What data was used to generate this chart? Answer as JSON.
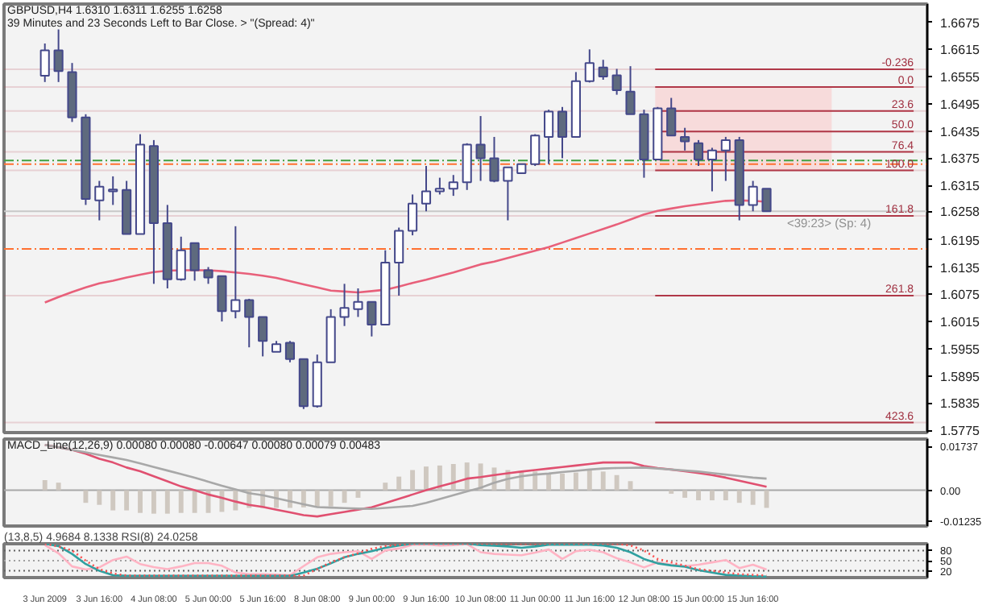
{
  "chart_data": [
    {
      "type": "candlestick",
      "categories": [
        null,
        null,
        null,
        null,
        null,
        null,
        null,
        null,
        null,
        null,
        null,
        null,
        null,
        null,
        null,
        null,
        null,
        null,
        null,
        null,
        null,
        null,
        null,
        null,
        null,
        null,
        null,
        null,
        null,
        null,
        null,
        null,
        null,
        null,
        null,
        null,
        null,
        null,
        null,
        null,
        null,
        null,
        null,
        null,
        null,
        null,
        null,
        null,
        null,
        null,
        null,
        null,
        null,
        null
      ],
      "ohlc": [
        [
          1.6557,
          1.6628,
          1.6543,
          1.6613
        ],
        [
          1.6613,
          1.6659,
          1.6543,
          1.6567
        ],
        [
          1.6565,
          1.6585,
          1.6455,
          1.6465
        ],
        [
          1.6465,
          1.6472,
          1.6272,
          1.6285
        ],
        [
          1.6282,
          1.6325,
          1.6238,
          1.6312
        ],
        [
          1.6302,
          1.6335,
          1.6272,
          1.6306
        ],
        [
          1.6305,
          1.6325,
          1.6208,
          1.6208
        ],
        [
          1.6208,
          1.6428,
          1.6208,
          1.6405
        ],
        [
          1.6402,
          1.6415,
          1.6098,
          1.6232
        ],
        [
          1.6232,
          1.6272,
          1.6088,
          1.6108
        ],
        [
          1.6108,
          1.6202,
          1.6105,
          1.6172
        ],
        [
          1.6188,
          1.6188,
          1.6105,
          1.6128
        ],
        [
          1.6128,
          1.6135,
          1.6098,
          1.6112
        ],
        [
          1.6115,
          1.6115,
          1.6015,
          1.6038
        ],
        [
          1.6038,
          1.6225,
          1.6022,
          1.6062
        ],
        [
          1.6062,
          1.6065,
          1.5958,
          1.6025
        ],
        [
          1.6025,
          1.6025,
          1.5938,
          1.5972
        ],
        [
          1.5948,
          1.5972,
          1.5948,
          1.5965
        ],
        [
          1.5968,
          1.5972,
          1.5925,
          1.5932
        ],
        [
          1.5932,
          1.5932,
          1.5822,
          1.5828
        ],
        [
          1.5828,
          1.5942,
          1.5825,
          1.5925
        ],
        [
          1.5925,
          1.6042,
          1.5925,
          1.6025
        ],
        [
          1.6025,
          1.6098,
          1.6005,
          1.6045
        ],
        [
          1.6042,
          1.6088,
          1.6025,
          1.6058
        ],
        [
          1.6058,
          1.6058,
          1.5982,
          1.6008
        ],
        [
          1.6008,
          1.6172,
          1.6008,
          1.6145
        ],
        [
          1.6145,
          1.6222,
          1.6072,
          1.6215
        ],
        [
          1.6215,
          1.6295,
          1.6205,
          1.6275
        ],
        [
          1.6275,
          1.6358,
          1.6258,
          1.6302
        ],
        [
          1.6302,
          1.6332,
          1.6295,
          1.6308
        ],
        [
          1.6308,
          1.6338,
          1.6292,
          1.6322
        ],
        [
          1.6322,
          1.6408,
          1.6305,
          1.6405
        ],
        [
          1.6405,
          1.6468,
          1.6325,
          1.6375
        ],
        [
          1.6375,
          1.6422,
          1.6322,
          1.6325
        ],
        [
          1.6325,
          1.6355,
          1.6238,
          1.6355
        ],
        [
          1.6342,
          1.6362,
          1.6342,
          1.6362
        ],
        [
          1.6362,
          1.6428,
          1.6358,
          1.6425
        ],
        [
          1.6422,
          1.6482,
          1.6362,
          1.6478
        ],
        [
          1.6478,
          1.6488,
          1.6375,
          1.6422
        ],
        [
          1.6422,
          1.6565,
          1.6422,
          1.6545
        ],
        [
          1.6545,
          1.6615,
          1.6542,
          1.6585
        ],
        [
          1.6575,
          1.6592,
          1.6548,
          1.6555
        ],
        [
          1.6558,
          1.6572,
          1.6515,
          1.6525
        ],
        [
          1.6522,
          1.6578,
          1.6472,
          1.6472
        ],
        [
          1.6472,
          1.6482,
          1.6332,
          1.6372
        ],
        [
          1.6372,
          1.6488,
          1.6372,
          1.6485
        ],
        [
          1.6485,
          1.6508,
          1.6425,
          1.6425
        ],
        [
          1.6422,
          1.6442,
          1.6392,
          1.6412
        ],
        [
          1.6408,
          1.6415,
          1.6358,
          1.6372
        ],
        [
          1.6372,
          1.6398,
          1.6302,
          1.6392
        ],
        [
          1.6392,
          1.6422,
          1.6325,
          1.6415
        ],
        [
          1.6415,
          1.6422,
          1.6238,
          1.6272
        ],
        [
          1.6272,
          1.6325,
          1.6258,
          1.6312
        ],
        [
          1.6308,
          1.6308,
          1.6258,
          1.6258
        ]
      ],
      "colors": [
        "#ffffff",
        "#5e6a7e",
        "#5e6a7e",
        "#5e6a7e",
        "#ffffff",
        "#ffffff",
        "#5e6a7e",
        "#ffffff",
        "#5e6a7e",
        "#5e6a7e",
        "#ffffff",
        "#5e6a7e",
        "#5e6a7e",
        "#5e6a7e",
        "#ffffff",
        "#5e6a7e",
        "#5e6a7e",
        "#ffffff",
        "#5e6a7e",
        "#5e6a7e",
        "#ffffff",
        "#ffffff",
        "#ffffff",
        "#ffffff",
        "#5e6a7e",
        "#ffffff",
        "#ffffff",
        "#ffffff",
        "#ffffff",
        "#ffffff",
        "#ffffff",
        "#ffffff",
        "#5e6a7e",
        "#5e6a7e",
        "#ffffff",
        "#ffffff",
        "#ffffff",
        "#ffffff",
        "#5e6a7e",
        "#ffffff",
        "#ffffff",
        "#5e6a7e",
        "#5e6a7e",
        "#5e6a7e",
        "#5e6a7e",
        "#ffffff",
        "#5e6a7e",
        "#5e6a7e",
        "#5e6a7e",
        "#ffffff",
        "#ffffff",
        "#5e6a7e",
        "#ffffff",
        "#5e6a7e"
      ],
      "series": [
        {
          "type": "line",
          "color": "#e8607a",
          "values": [
            1.6057,
            1.6069,
            1.608,
            1.609,
            1.6099,
            1.6105,
            1.6112,
            1.6118,
            1.6124,
            1.6127,
            1.6128,
            1.6128,
            1.6128,
            1.6126,
            1.6123,
            1.612,
            1.6116,
            1.6111,
            1.6104,
            1.6097,
            1.609,
            1.6083,
            1.6081,
            1.6079,
            1.6082,
            1.6085,
            1.6092,
            1.61,
            1.6107,
            1.6115,
            1.6123,
            1.6132,
            1.6141,
            1.6147,
            1.6155,
            1.6163,
            1.6171,
            1.6179,
            1.6189,
            1.6199,
            1.6209,
            1.6219,
            1.6229,
            1.624,
            1.6251,
            1.6259,
            1.6264,
            1.6269,
            1.6273,
            1.6277,
            1.6281,
            1.6282,
            1.6281,
            1.6279
          ]
        }
      ],
      "ylim": [
        1.577,
        1.6715
      ],
      "yticks": [
        1.6675,
        1.6615,
        1.6555,
        1.6495,
        1.6435,
        1.6375,
        1.6315,
        1.6258,
        1.6195,
        1.6135,
        1.6075,
        1.6015,
        1.5955,
        1.5895,
        1.5835,
        1.5775
      ],
      "bands": [
        {
          "axis": "y",
          "from": 1.6348,
          "to": 1.6532,
          "color": "#f8d4d4"
        }
      ],
      "ref_lines": [
        {
          "axis": "y",
          "value": 1.637,
          "color": "#40a040",
          "line_style": "dashed"
        },
        {
          "axis": "y",
          "value": 1.6362,
          "color": "#ff7030",
          "line_style": "dashed"
        },
        {
          "axis": "y",
          "value": 1.6175,
          "color": "#ff7030",
          "line_style": "dashed"
        },
        {
          "axis": "y",
          "value": 1.6258,
          "color": "#c8c8c8"
        },
        {
          "axis": "y",
          "value": 1.6571,
          "color": "#b03848"
        },
        {
          "axis": "y",
          "value": 1.6532,
          "color": "#b03848"
        },
        {
          "axis": "y",
          "value": 1.6479,
          "color": "#b03848"
        },
        {
          "axis": "y",
          "value": 1.6434,
          "color": "#b03848"
        },
        {
          "axis": "y",
          "value": 1.6389,
          "color": "#b03848"
        },
        {
          "axis": "y",
          "value": 1.6348,
          "color": "#b03848"
        },
        {
          "axis": "y",
          "value": 1.6248,
          "color": "#b03848"
        },
        {
          "axis": "y",
          "value": 1.6072,
          "color": "#b03848"
        },
        {
          "axis": "y",
          "value": 1.5792,
          "color": "#b03848"
        }
      ],
      "annotations": [
        "GBPUSD,H4  1.6310 1.6311 1.6255 1.6258",
        "39 Minutes and 23 Seconds Left to Bar Close. > \"(Spread: 4)\"",
        "<39:23> (Sp: 4)",
        {
          "text": "-0.236",
          "y": 1.6571
        },
        {
          "text": "0.0",
          "y": 1.6532
        },
        {
          "text": "23.6",
          "y": 1.6479
        },
        {
          "text": "50.0",
          "y": 1.6434
        },
        {
          "text": "76.4",
          "y": 1.6389
        },
        {
          "text": "100.0",
          "y": 1.6348
        },
        {
          "text": "161.8",
          "y": 1.6248
        },
        {
          "text": "261.8",
          "y": 1.6072
        },
        {
          "text": "423.6",
          "y": 1.5792
        }
      ],
      "tick_labels": "y"
    },
    {
      "type": "bar",
      "categories": [
        null,
        null,
        null,
        null,
        null,
        null,
        null,
        null,
        null,
        null,
        null,
        null,
        null,
        null,
        null,
        null,
        null,
        null,
        null,
        null,
        null,
        null,
        null,
        null,
        null,
        null,
        null,
        null,
        null,
        null,
        null,
        null,
        null,
        null,
        null,
        null,
        null,
        null,
        null,
        null,
        null,
        null,
        null,
        null,
        null,
        null,
        null,
        null,
        null,
        null,
        null,
        null,
        null,
        null
      ],
      "series": [
        {
          "type": "bar",
          "color": "#cfc8c0",
          "values": [
            0.004,
            0.003,
            null,
            -0.005,
            -0.0058,
            -0.008,
            -0.008,
            -0.009,
            -0.0093,
            -0.0093,
            -0.009,
            -0.009,
            -0.009,
            -0.0086,
            -0.008,
            -0.007,
            -0.007,
            -0.007,
            -0.007,
            -0.0068,
            -0.0068,
            -0.0064,
            -0.005,
            -0.003,
            null,
            0.003,
            0.0054,
            0.008,
            0.0094,
            0.0098,
            0.0104,
            0.011,
            0.0106,
            0.009,
            0.008,
            0.0074,
            0.0074,
            0.0066,
            0.0066,
            0.007,
            0.008,
            0.0074,
            0.006,
            0.0036,
            null,
            null,
            -0.0014,
            -0.003,
            -0.004,
            -0.004,
            -0.004,
            -0.005,
            -0.0058,
            -0.007
          ]
        },
        {
          "type": "line",
          "color": "#e05070",
          "values": [
            0.018,
            0.017,
            0.016,
            0.0145,
            0.0125,
            0.011,
            0.009,
            0.0075,
            0.0055,
            0.0035,
            0.0015,
            0.0,
            -0.0017,
            -0.003,
            -0.0045,
            -0.0058,
            -0.0066,
            -0.0077,
            -0.0088,
            -0.0099,
            -0.0104,
            -0.0095,
            -0.0086,
            -0.0077,
            -0.0068,
            -0.0051,
            -0.0034,
            -0.0017,
            0.0,
            0.0015,
            0.003,
            0.0046,
            0.0052,
            0.006,
            0.0067,
            0.0074,
            0.008,
            0.0086,
            0.0092,
            0.0098,
            0.0104,
            0.011,
            0.011,
            0.011,
            0.0096,
            0.0088,
            0.0082,
            0.0075,
            0.0068,
            0.006,
            0.005,
            0.0038,
            0.0026,
            0.0014
          ]
        },
        {
          "type": "line",
          "color": "#a8a8a8",
          "values": [
            0.018,
            0.017,
            0.016,
            0.015,
            0.014,
            0.013,
            0.012,
            0.0106,
            0.0092,
            0.0078,
            0.0064,
            0.005,
            0.0034,
            0.0018,
            0.0003,
            -0.0012,
            -0.002,
            -0.0032,
            -0.0044,
            -0.0056,
            -0.0067,
            -0.0069,
            -0.0071,
            -0.0073,
            -0.0074,
            -0.007,
            -0.0066,
            -0.0062,
            -0.005,
            -0.0035,
            -0.002,
            -0.0005,
            0.001,
            0.003,
            0.0045,
            0.0055,
            0.0062,
            0.0066,
            0.0072,
            0.0077,
            0.0082,
            0.0086,
            0.0088,
            0.0089,
            0.009,
            0.0086,
            0.0082,
            0.0078,
            0.0074,
            0.0068,
            0.0062,
            0.0056,
            0.005,
            0.0046
          ]
        }
      ],
      "ylim": [
        -0.0142,
        0.0203
      ],
      "yticks": [
        0.01737,
        {
          "value": 0,
          "label": "0.00"
        },
        -0.01235
      ],
      "ref_lines": [
        {
          "axis": "y",
          "value": 0,
          "color": "#a8a8a8"
        }
      ],
      "annotations": [
        "MACD_Line(12,26,9) 0.00080 0.00080 -0.00647 0.00080 0.00079 0.00483"
      ],
      "tick_labels": "y"
    },
    {
      "type": "line",
      "categories": [
        "3 Jun 2009",
        null,
        null,
        null,
        "3 Jun 16:00",
        null,
        null,
        null,
        "4 Jun 08:00",
        null,
        null,
        null,
        "5 Jun 00:00",
        null,
        null,
        null,
        "5 Jun 16:00",
        null,
        null,
        null,
        "8 Jun 08:00",
        null,
        null,
        null,
        "9 Jun 00:00",
        null,
        null,
        null,
        "9 Jun 16:00",
        null,
        null,
        null,
        "10 Jun 08:00",
        null,
        null,
        null,
        "11 Jun 00:00",
        null,
        null,
        null,
        "11 Jun 16:00",
        null,
        null,
        null,
        "12 Jun 08:00",
        null,
        null,
        null,
        "15 Jun 00:00",
        null,
        null,
        null,
        "15 Jun 16:00",
        null
      ],
      "series": [
        {
          "color": "#ffb4c4",
          "values": [
            96,
            72,
            33,
            24,
            30,
            52,
            62,
            40,
            31,
            25,
            33,
            43,
            43,
            35,
            15,
            10,
            10,
            9,
            7,
            34,
            60,
            70,
            75,
            78,
            55,
            80,
            86,
            97,
            98,
            95,
            96,
            99,
            75,
            70,
            68,
            66,
            74,
            83,
            55,
            78,
            82,
            75,
            57,
            45,
            30,
            45,
            38,
            34,
            38,
            45,
            52,
            28,
            38,
            24
          ]
        },
        {
          "color": "#30a0a0",
          "values": [
            100,
            93,
            70,
            40,
            20,
            7,
            5,
            5,
            5,
            5,
            5,
            5,
            5,
            5,
            5,
            5,
            5,
            5,
            5,
            15,
            26,
            42,
            60,
            70,
            78,
            88,
            95,
            100,
            100,
            100,
            100,
            100,
            96,
            94,
            92,
            88,
            92,
            97,
            97,
            97,
            97,
            95,
            88,
            75,
            55,
            42,
            36,
            32,
            22,
            15,
            8,
            6,
            4,
            3
          ]
        },
        {
          "color": "#ff5050",
          "line_style": "dotted",
          "values": [
            100,
            92,
            80,
            50,
            25,
            12,
            6,
            6,
            6,
            6,
            6,
            6,
            6,
            6,
            6,
            6,
            6,
            6,
            6,
            6,
            25,
            45,
            60,
            72,
            85,
            93,
            97,
            100,
            100,
            100,
            100,
            100,
            100,
            100,
            100,
            100,
            100,
            100,
            100,
            100,
            100,
            100,
            100,
            95,
            80,
            55,
            45,
            35,
            25,
            20,
            15,
            10,
            8,
            6
          ]
        }
      ],
      "ylim": [
        0,
        100
      ],
      "yticks": [
        20,
        50,
        80
      ],
      "ref_lines": [
        {
          "axis": "y",
          "value": 80,
          "color": "#606060",
          "line_style": "dotted"
        },
        {
          "axis": "y",
          "value": 50,
          "color": "#a0a0a0",
          "line_style": "dotted"
        },
        {
          "axis": "y",
          "value": 20,
          "color": "#606060",
          "line_style": "dotted"
        }
      ],
      "annotations": [
        "(13,8,5) 4.9684 8.1338  RSI(8) 24.0258"
      ]
    }
  ]
}
